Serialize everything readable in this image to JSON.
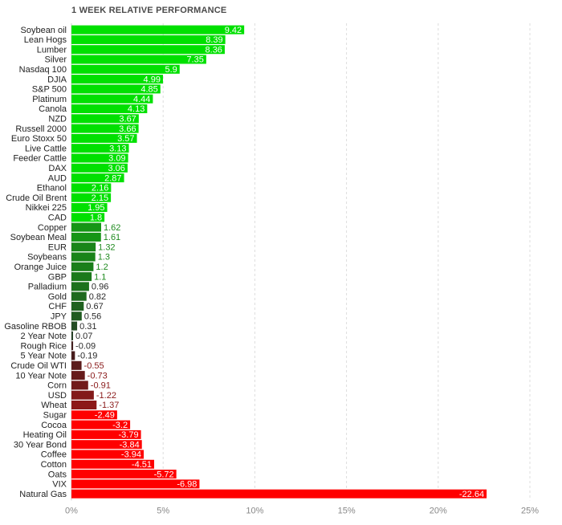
{
  "chart_data": {
    "type": "bar",
    "orientation": "horizontal",
    "title": "1 WEEK RELATIVE PERFORMANCE",
    "xlabel": "",
    "ylabel": "",
    "xlim": [
      0,
      25
    ],
    "x_ticks": [
      "0%",
      "5%",
      "10%",
      "15%",
      "20%",
      "25%"
    ],
    "x_tick_values": [
      0,
      5,
      10,
      15,
      20,
      25
    ],
    "grid": "vertical dashed",
    "colors": {
      "positive_strong": "#00e000",
      "negative_strong": "#ff0000",
      "positive_weak": "#2e4a2e",
      "negative_weak": "#4a2a2a"
    },
    "categories": [
      "Soybean oil",
      "Lean Hogs",
      "Lumber",
      "Silver",
      "Nasdaq 100",
      "DJIA",
      "S&P 500",
      "Platinum",
      "Canola",
      "NZD",
      "Russell 2000",
      "Euro Stoxx 50",
      "Live Cattle",
      "Feeder Cattle",
      "DAX",
      "AUD",
      "Ethanol",
      "Crude Oil Brent",
      "Nikkei 225",
      "CAD",
      "Copper",
      "Soybean Meal",
      "EUR",
      "Soybeans",
      "Orange Juice",
      "GBP",
      "Palladium",
      "Gold",
      "CHF",
      "JPY",
      "Gasoline RBOB",
      "2 Year Note",
      "Rough Rice",
      "5 Year Note",
      "Crude Oil WTI",
      "10 Year Note",
      "Corn",
      "USD",
      "Wheat",
      "Sugar",
      "Cocoa",
      "Heating Oil",
      "30 Year Bond",
      "Coffee",
      "Cotton",
      "Oats",
      "VIX",
      "Natural Gas"
    ],
    "values": [
      9.42,
      8.39,
      8.36,
      7.35,
      5.9,
      4.99,
      4.85,
      4.44,
      4.13,
      3.67,
      3.66,
      3.57,
      3.13,
      3.09,
      3.06,
      2.87,
      2.16,
      2.15,
      1.95,
      1.8,
      1.62,
      1.61,
      1.32,
      1.3,
      1.2,
      1.1,
      0.96,
      0.82,
      0.67,
      0.56,
      0.31,
      0.07,
      -0.09,
      -0.19,
      -0.55,
      -0.73,
      -0.91,
      -1.22,
      -1.37,
      -2.49,
      -3.2,
      -3.79,
      -3.84,
      -3.94,
      -4.51,
      -5.72,
      -6.98,
      -22.64
    ],
    "value_labels": [
      "9.42",
      "8.39",
      "8.36",
      "7.35",
      "5.9",
      "4.99",
      "4.85",
      "4.44",
      "4.13",
      "3.67",
      "3.66",
      "3.57",
      "3.13",
      "3.09",
      "3.06",
      "2.87",
      "2.16",
      "2.15",
      "1.95",
      "1.8",
      "1.62",
      "1.61",
      "1.32",
      "1.3",
      "1.2",
      "1.1",
      "0.96",
      "0.82",
      "0.67",
      "0.56",
      "0.31",
      "0.07",
      "-0.09",
      "-0.19",
      "-0.55",
      "-0.73",
      "-0.91",
      "-1.22",
      "-1.37",
      "-2.49",
      "-3.2",
      "-3.79",
      "-3.84",
      "-3.94",
      "-4.51",
      "-5.72",
      "-6.98",
      "-22.64"
    ]
  }
}
